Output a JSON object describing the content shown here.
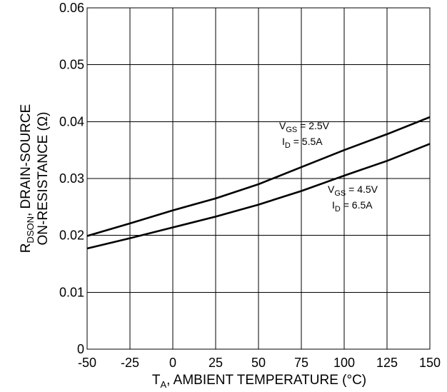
{
  "chart_data": {
    "type": "line",
    "xlabel": {
      "main": "T",
      "sub": "A",
      "rest": ", AMBIENT TEMPERATURE (°C)"
    },
    "ylabel": {
      "line1_main": "R",
      "line1_sub": "DSON",
      "line1_rest": ", DRAIN-SOURCE",
      "line2": "ON-RESISTANCE (Ω)"
    },
    "xlim": [
      -50,
      150
    ],
    "ylim": [
      0,
      0.06
    ],
    "x_ticks": [
      -50,
      -25,
      0,
      25,
      50,
      75,
      100,
      125,
      150
    ],
    "x_tick_labels": [
      "-50",
      "-25",
      "0",
      "25",
      "50",
      "75",
      "100",
      "125",
      "150"
    ],
    "y_ticks": [
      0,
      0.01,
      0.02,
      0.03,
      0.04,
      0.05,
      0.06
    ],
    "y_tick_labels": [
      "0",
      "0.01",
      "0.02",
      "0.03",
      "0.04",
      "0.05",
      "0.06"
    ],
    "grid": true,
    "series": [
      {
        "x": [
          -50,
          -25,
          0,
          25,
          50,
          75,
          100,
          125,
          150
        ],
        "y": [
          0.0199,
          0.0221,
          0.0244,
          0.0265,
          0.029,
          0.032,
          0.035,
          0.0378,
          0.0408
        ],
        "annotation": {
          "v_main": "V",
          "v_sub": "GS",
          "v_rest": " = 2.5V",
          "i_main": "I",
          "i_sub": "D",
          "i_rest": " = 5.5A"
        }
      },
      {
        "x": [
          -50,
          -25,
          0,
          25,
          50,
          75,
          100,
          125,
          150
        ],
        "y": [
          0.0177,
          0.0195,
          0.0214,
          0.0233,
          0.0254,
          0.0278,
          0.0305,
          0.0331,
          0.0361
        ],
        "annotation": {
          "v_main": "V",
          "v_sub": "GS",
          "v_rest": " = 4.5V",
          "i_main": "I",
          "i_sub": "D",
          "i_rest": " = 6.5A"
        }
      }
    ]
  }
}
